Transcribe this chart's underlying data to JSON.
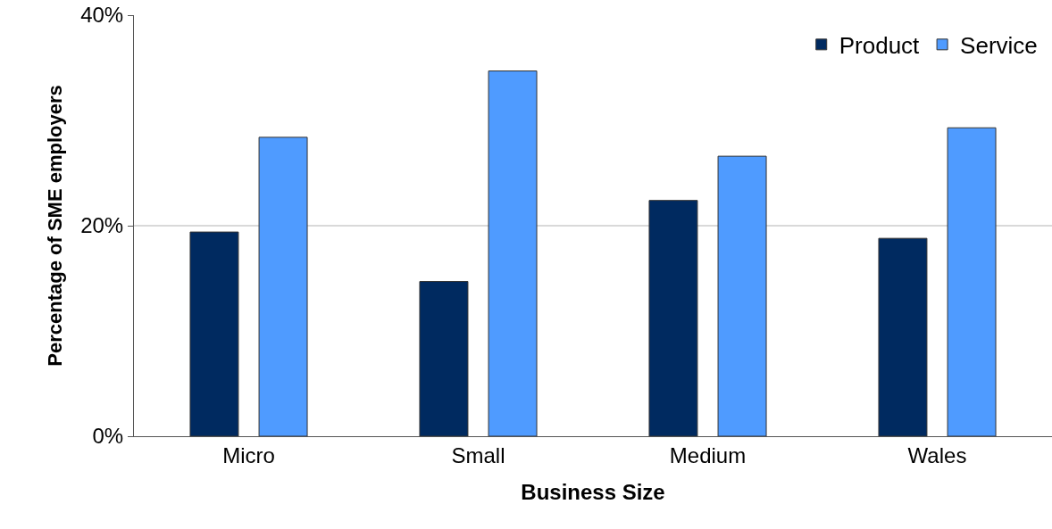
{
  "chart_data": {
    "type": "bar",
    "xlabel": "Business Size",
    "ylabel": "Percentage of SME employers",
    "categories": [
      "Micro",
      "Small",
      "Medium",
      "Wales"
    ],
    "series": [
      {
        "name": "Product",
        "color": "#002a60",
        "values": [
          19.4,
          14.7,
          22.4,
          18.8
        ]
      },
      {
        "name": "Service",
        "color": "#4f9bff",
        "values": [
          28.4,
          34.7,
          26.6,
          29.3
        ]
      }
    ],
    "ylim": [
      0,
      40
    ],
    "yticks": [
      {
        "value": 0,
        "label": "0%"
      },
      {
        "value": 20,
        "label": "20%"
      },
      {
        "value": 40,
        "label": "40%"
      }
    ],
    "grid": "y",
    "legend": "top right"
  }
}
